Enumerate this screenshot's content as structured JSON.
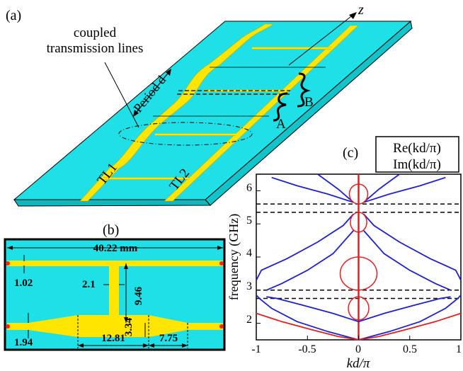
{
  "panel_a": {
    "label": "(a)",
    "axis_z": "z",
    "coupled_lines": [
      "coupled",
      "transmission lines"
    ],
    "period": "Period d",
    "tl1": "TL1",
    "tl2": "TL2",
    "label_a": "A",
    "label_b": "B",
    "colors": {
      "substrate": "#1ee0e6",
      "metal": "#ffe600"
    }
  },
  "panel_b": {
    "label": "(b)",
    "width": "40.22 mm",
    "dims": [
      "1.02",
      "2.1",
      "9.46",
      "3.34",
      "1.94",
      "12.81",
      "7.75"
    ]
  },
  "panel_c": {
    "label": "(c)",
    "legend_re": "Re(kd/π)",
    "legend_im": "Im(kd/π)",
    "colors": {
      "re": "#1f1fd0",
      "im": "#e02020"
    }
  },
  "chart_data": {
    "type": "line",
    "xlabel": "kd/π",
    "ylabel": "frequency (GHz)",
    "xlim": [
      -1,
      1
    ],
    "ylim": [
      1.5,
      6.5
    ],
    "xticks": [
      "-1",
      "-0.5",
      "0",
      "0.5",
      "1"
    ],
    "yticks": [
      "2",
      "3",
      "4",
      "5",
      "6"
    ],
    "band_edges_ghz": [
      2.75,
      3.0,
      5.35,
      5.6
    ],
    "series": [
      {
        "name": "Re(kd/π)",
        "role": "re",
        "points": [
          [
            0,
            1.5
          ],
          [
            0.3,
            1.75
          ],
          [
            0.6,
            2.05
          ],
          [
            0.85,
            2.45
          ],
          [
            0.97,
            2.75
          ],
          [
            1.0,
            2.85
          ]
        ]
      },
      {
        "name": "Re(kd/π)",
        "role": "re",
        "points": [
          [
            1.0,
            3.3
          ],
          [
            0.95,
            3.6
          ],
          [
            0.7,
            3.95
          ],
          [
            0.4,
            4.45
          ],
          [
            0.15,
            4.95
          ],
          [
            0.05,
            5.3
          ]
        ]
      },
      {
        "name": "Re(kd/π)",
        "role": "re",
        "points": [
          [
            0,
            2.05
          ],
          [
            0.25,
            2.3
          ],
          [
            0.55,
            2.55
          ],
          [
            0.8,
            2.75
          ],
          [
            0.9,
            2.8
          ]
        ]
      },
      {
        "name": "Re(kd/π)",
        "role": "re",
        "points": [
          [
            0.9,
            3.0
          ],
          [
            0.75,
            3.2
          ],
          [
            0.5,
            3.6
          ],
          [
            0.25,
            4.1
          ],
          [
            0.05,
            4.8
          ]
        ]
      },
      {
        "name": "Re(kd/π)",
        "role": "re",
        "points": [
          [
            0.05,
            5.65
          ],
          [
            0.3,
            5.9
          ],
          [
            0.6,
            6.15
          ],
          [
            0.85,
            6.4
          ]
        ]
      },
      {
        "name": "Re(kd/π)",
        "role": "re",
        "points": [
          [
            0.05,
            5.65
          ],
          [
            0.2,
            6.05
          ],
          [
            0.4,
            6.5
          ]
        ]
      },
      {
        "name": "Im(kd/π)",
        "role": "im",
        "points": [
          [
            0,
            1.5
          ],
          [
            0.2,
            1.6
          ],
          [
            0.45,
            1.8
          ],
          [
            0.75,
            2.05
          ],
          [
            1.0,
            2.3
          ]
        ]
      }
    ]
  }
}
